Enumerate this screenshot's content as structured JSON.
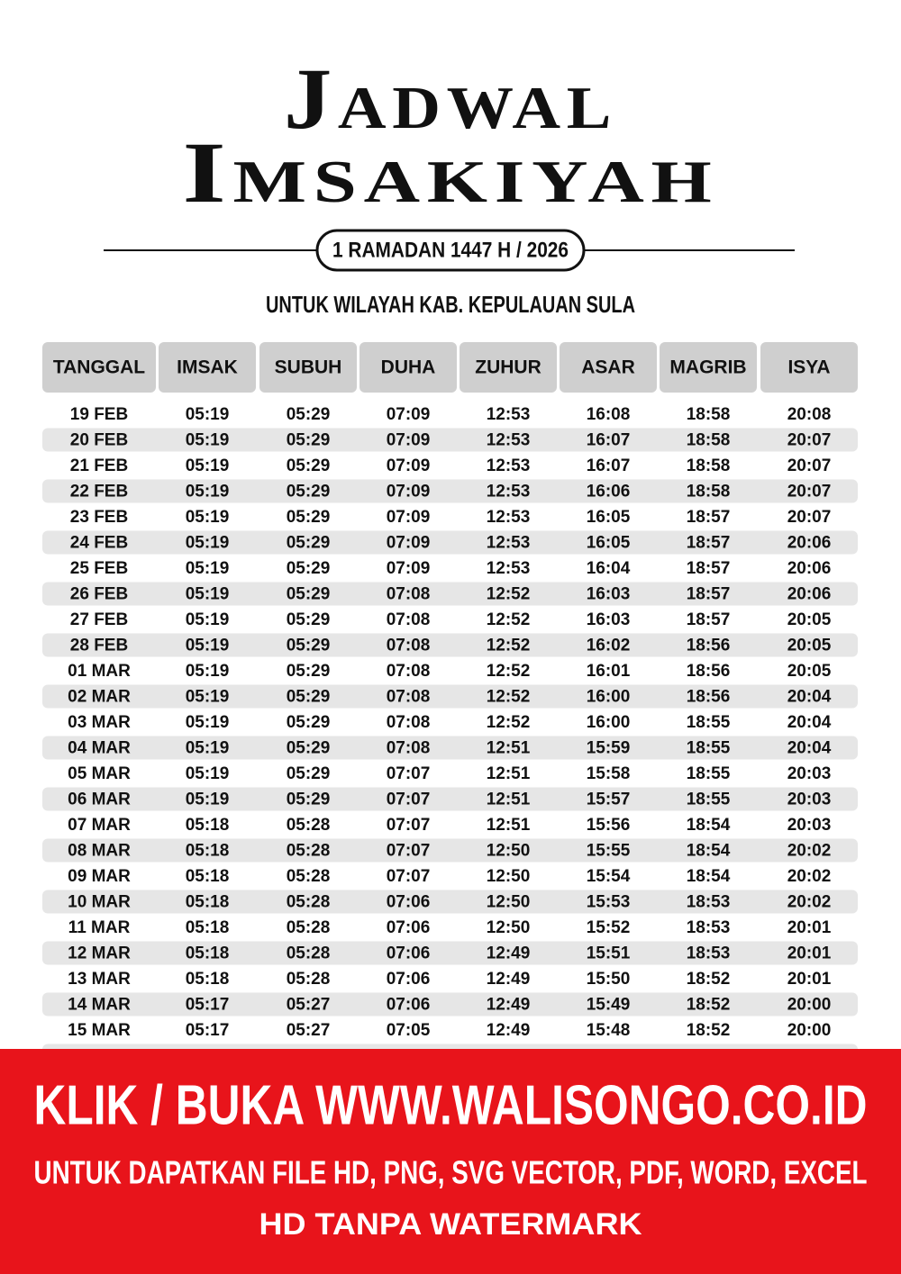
{
  "header": {
    "title_line1": "Jadwal",
    "title_line2": "Imsakiyah",
    "badge": "1 RAMADAN 1447 H / 2026",
    "subtitle": "UNTUK WILAYAH KAB. KEPULAUAN SULA"
  },
  "table": {
    "columns": [
      "TANGGAL",
      "IMSAK",
      "SUBUH",
      "DUHA",
      "ZUHUR",
      "ASAR",
      "MAGRIB",
      "ISYA"
    ],
    "rows": [
      [
        "19 FEB",
        "05:19",
        "05:29",
        "07:09",
        "12:53",
        "16:08",
        "18:58",
        "20:08"
      ],
      [
        "20 FEB",
        "05:19",
        "05:29",
        "07:09",
        "12:53",
        "16:07",
        "18:58",
        "20:07"
      ],
      [
        "21 FEB",
        "05:19",
        "05:29",
        "07:09",
        "12:53",
        "16:07",
        "18:58",
        "20:07"
      ],
      [
        "22 FEB",
        "05:19",
        "05:29",
        "07:09",
        "12:53",
        "16:06",
        "18:58",
        "20:07"
      ],
      [
        "23 FEB",
        "05:19",
        "05:29",
        "07:09",
        "12:53",
        "16:05",
        "18:57",
        "20:07"
      ],
      [
        "24 FEB",
        "05:19",
        "05:29",
        "07:09",
        "12:53",
        "16:05",
        "18:57",
        "20:06"
      ],
      [
        "25 FEB",
        "05:19",
        "05:29",
        "07:09",
        "12:53",
        "16:04",
        "18:57",
        "20:06"
      ],
      [
        "26 FEB",
        "05:19",
        "05:29",
        "07:08",
        "12:52",
        "16:03",
        "18:57",
        "20:06"
      ],
      [
        "27 FEB",
        "05:19",
        "05:29",
        "07:08",
        "12:52",
        "16:03",
        "18:57",
        "20:05"
      ],
      [
        "28 FEB",
        "05:19",
        "05:29",
        "07:08",
        "12:52",
        "16:02",
        "18:56",
        "20:05"
      ],
      [
        "01 MAR",
        "05:19",
        "05:29",
        "07:08",
        "12:52",
        "16:01",
        "18:56",
        "20:05"
      ],
      [
        "02 MAR",
        "05:19",
        "05:29",
        "07:08",
        "12:52",
        "16:00",
        "18:56",
        "20:04"
      ],
      [
        "03 MAR",
        "05:19",
        "05:29",
        "07:08",
        "12:52",
        "16:00",
        "18:55",
        "20:04"
      ],
      [
        "04 MAR",
        "05:19",
        "05:29",
        "07:08",
        "12:51",
        "15:59",
        "18:55",
        "20:04"
      ],
      [
        "05 MAR",
        "05:19",
        "05:29",
        "07:07",
        "12:51",
        "15:58",
        "18:55",
        "20:03"
      ],
      [
        "06 MAR",
        "05:19",
        "05:29",
        "07:07",
        "12:51",
        "15:57",
        "18:55",
        "20:03"
      ],
      [
        "07 MAR",
        "05:18",
        "05:28",
        "07:07",
        "12:51",
        "15:56",
        "18:54",
        "20:03"
      ],
      [
        "08 MAR",
        "05:18",
        "05:28",
        "07:07",
        "12:50",
        "15:55",
        "18:54",
        "20:02"
      ],
      [
        "09 MAR",
        "05:18",
        "05:28",
        "07:07",
        "12:50",
        "15:54",
        "18:54",
        "20:02"
      ],
      [
        "10 MAR",
        "05:18",
        "05:28",
        "07:06",
        "12:50",
        "15:53",
        "18:53",
        "20:02"
      ],
      [
        "11 MAR",
        "05:18",
        "05:28",
        "07:06",
        "12:50",
        "15:52",
        "18:53",
        "20:01"
      ],
      [
        "12 MAR",
        "05:18",
        "05:28",
        "07:06",
        "12:49",
        "15:51",
        "18:53",
        "20:01"
      ],
      [
        "13 MAR",
        "05:18",
        "05:28",
        "07:06",
        "12:49",
        "15:50",
        "18:52",
        "20:01"
      ],
      [
        "14 MAR",
        "05:17",
        "05:27",
        "07:06",
        "12:49",
        "15:49",
        "18:52",
        "20:00"
      ],
      [
        "15 MAR",
        "05:17",
        "05:27",
        "07:05",
        "12:49",
        "15:48",
        "18:52",
        "20:00"
      ]
    ]
  },
  "banner": {
    "line1": "KLIK / BUKA WWW.WALISONGO.CO.ID",
    "line2": "UNTUK DAPATKAN FILE HD, PNG, SVG VECTOR, PDF, WORD, EXCEL",
    "line3": "HD TANPA WATERMARK"
  }
}
